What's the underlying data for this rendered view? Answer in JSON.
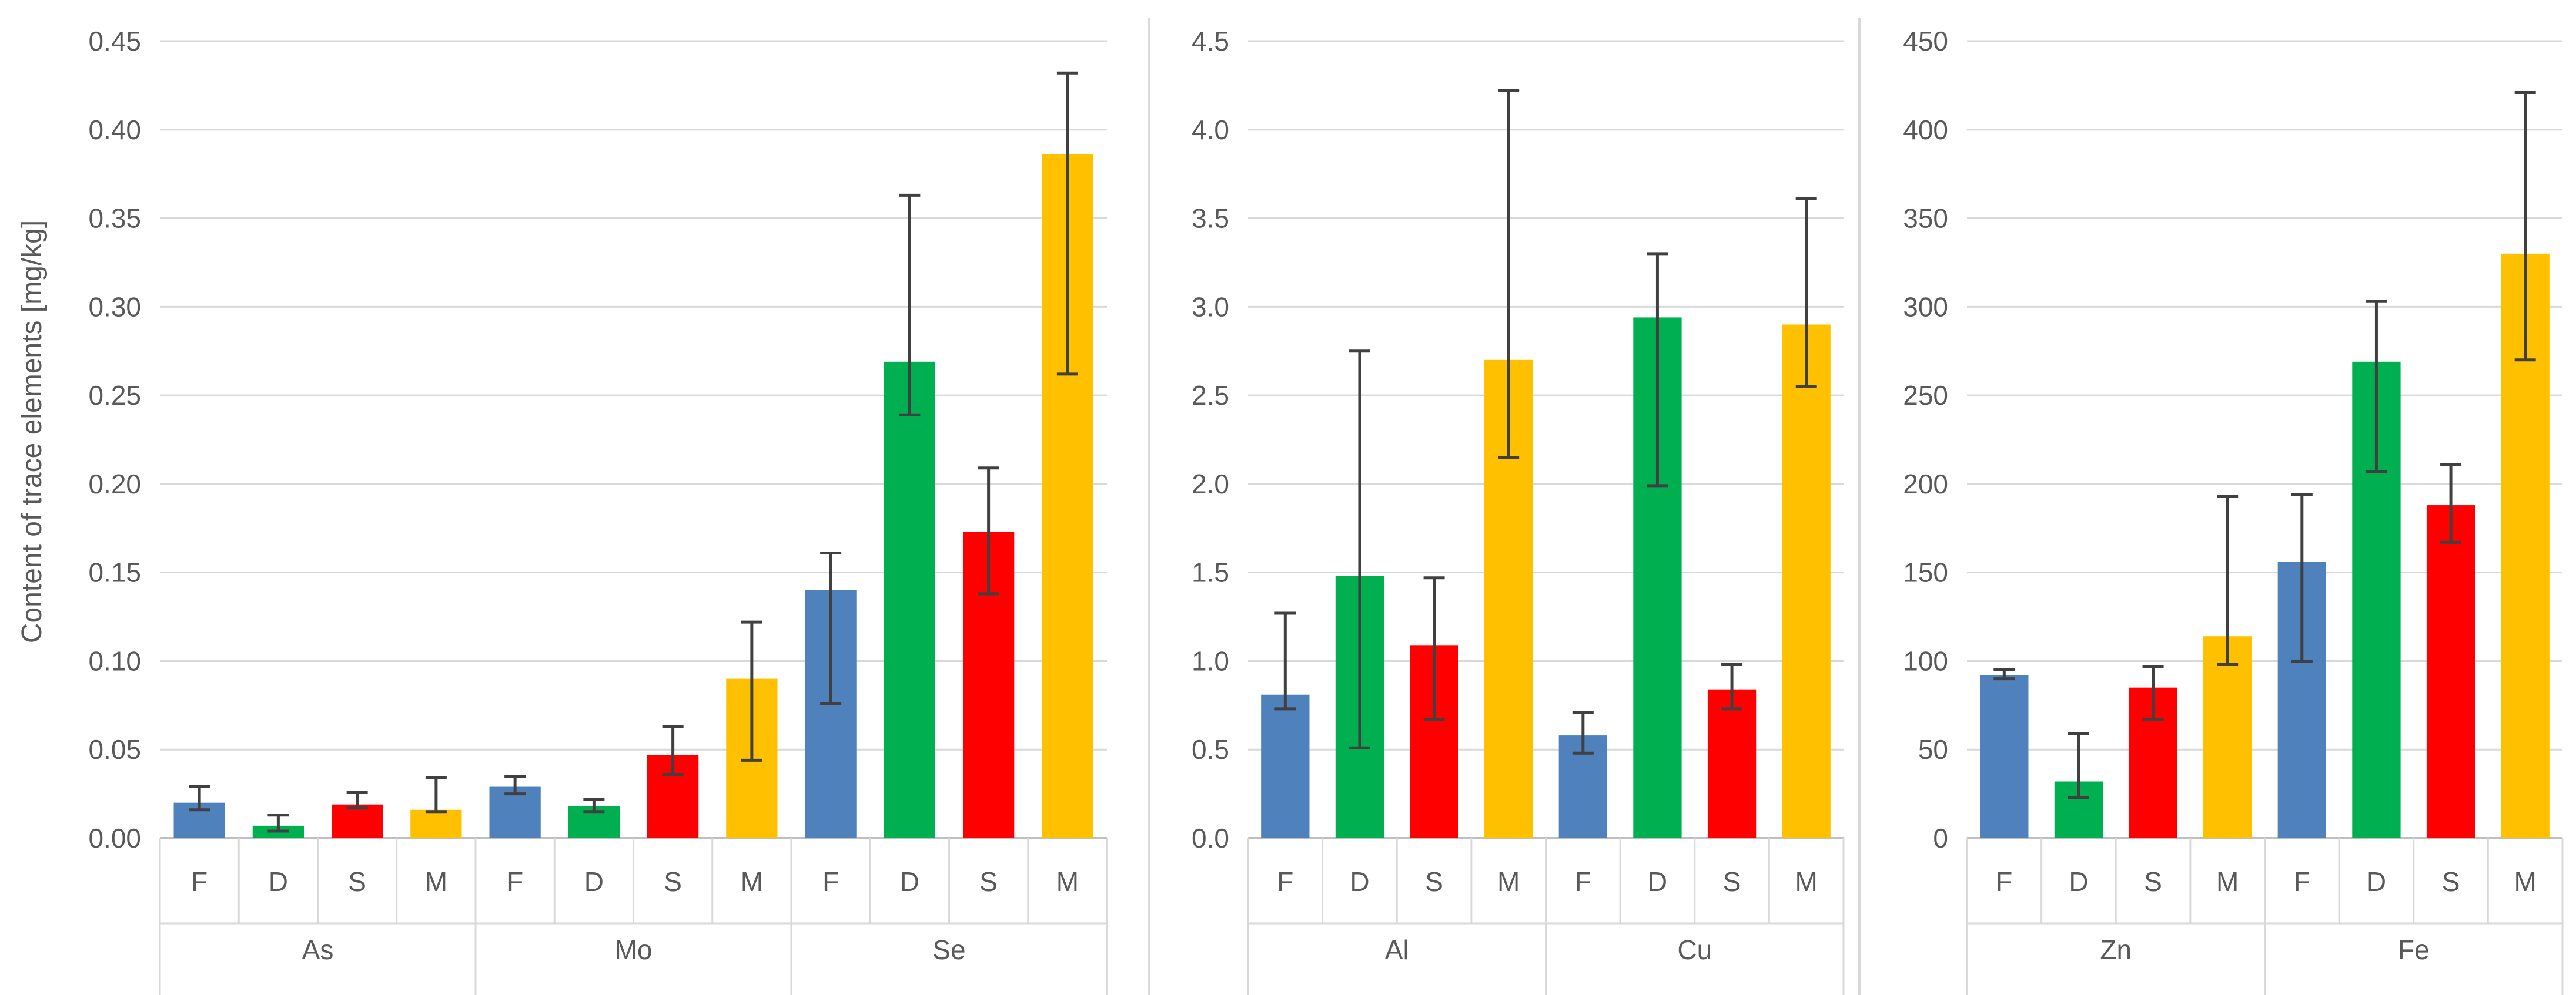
{
  "chart_data": {
    "type": "bar",
    "ylabel": "Content of trace elements [mg/kg]",
    "series_labels": [
      "F",
      "D",
      "S",
      "M"
    ],
    "colors": {
      "F": "#4f81bd",
      "D": "#00b050",
      "S": "#ff0000",
      "M": "#ffc000"
    },
    "gridline_color": "#d9d9d9",
    "errorbar_color": "#404040",
    "panels": [
      {
        "ylim": [
          0,
          0.45
        ],
        "ticks": [
          "0.00",
          "0.05",
          "0.10",
          "0.15",
          "0.20",
          "0.25",
          "0.30",
          "0.35",
          "0.40",
          "0.45"
        ],
        "groups": [
          {
            "name": "As",
            "bars": [
              {
                "label": "F",
                "value": 0.02,
                "err_low": 0.016,
                "err_high": 0.029
              },
              {
                "label": "D",
                "value": 0.007,
                "err_low": 0.004,
                "err_high": 0.013
              },
              {
                "label": "S",
                "value": 0.019,
                "err_low": 0.017,
                "err_high": 0.026
              },
              {
                "label": "M",
                "value": 0.016,
                "err_low": 0.015,
                "err_high": 0.034
              }
            ]
          },
          {
            "name": "Mo",
            "bars": [
              {
                "label": "F",
                "value": 0.029,
                "err_low": 0.025,
                "err_high": 0.035
              },
              {
                "label": "D",
                "value": 0.018,
                "err_low": 0.015,
                "err_high": 0.022
              },
              {
                "label": "S",
                "value": 0.047,
                "err_low": 0.036,
                "err_high": 0.063
              },
              {
                "label": "M",
                "value": 0.09,
                "err_low": 0.044,
                "err_high": 0.122
              }
            ]
          },
          {
            "name": "Se",
            "bars": [
              {
                "label": "F",
                "value": 0.14,
                "err_low": 0.076,
                "err_high": 0.161
              },
              {
                "label": "D",
                "value": 0.269,
                "err_low": 0.239,
                "err_high": 0.363
              },
              {
                "label": "S",
                "value": 0.173,
                "err_low": 0.138,
                "err_high": 0.209
              },
              {
                "label": "M",
                "value": 0.386,
                "err_low": 0.262,
                "err_high": 0.432
              }
            ]
          }
        ]
      },
      {
        "ylim": [
          0,
          4.5
        ],
        "ticks": [
          "0.0",
          "0.5",
          "1.0",
          "1.5",
          "2.0",
          "2.5",
          "3.0",
          "3.5",
          "4.0",
          "4.5"
        ],
        "groups": [
          {
            "name": "Al",
            "bars": [
              {
                "label": "F",
                "value": 0.81,
                "err_low": 0.73,
                "err_high": 1.27
              },
              {
                "label": "D",
                "value": 1.48,
                "err_low": 0.51,
                "err_high": 2.75
              },
              {
                "label": "S",
                "value": 1.09,
                "err_low": 0.67,
                "err_high": 1.47
              },
              {
                "label": "M",
                "value": 2.7,
                "err_low": 2.15,
                "err_high": 4.22
              }
            ]
          },
          {
            "name": "Cu",
            "bars": [
              {
                "label": "F",
                "value": 0.58,
                "err_low": 0.48,
                "err_high": 0.71
              },
              {
                "label": "D",
                "value": 2.94,
                "err_low": 1.99,
                "err_high": 3.3
              },
              {
                "label": "S",
                "value": 0.84,
                "err_low": 0.73,
                "err_high": 0.98
              },
              {
                "label": "M",
                "value": 2.9,
                "err_low": 2.55,
                "err_high": 3.61
              }
            ]
          }
        ]
      },
      {
        "ylim": [
          0,
          450
        ],
        "ticks": [
          "0",
          "50",
          "100",
          "150",
          "200",
          "250",
          "300",
          "350",
          "400",
          "450"
        ],
        "groups": [
          {
            "name": "Zn",
            "bars": [
              {
                "label": "F",
                "value": 92,
                "err_low": 90,
                "err_high": 95
              },
              {
                "label": "D",
                "value": 32,
                "err_low": 23,
                "err_high": 59
              },
              {
                "label": "S",
                "value": 85,
                "err_low": 67,
                "err_high": 97
              },
              {
                "label": "M",
                "value": 114,
                "err_low": 98,
                "err_high": 193
              }
            ]
          },
          {
            "name": "Fe",
            "bars": [
              {
                "label": "F",
                "value": 156,
                "err_low": 100,
                "err_high": 194
              },
              {
                "label": "D",
                "value": 269,
                "err_low": 207,
                "err_high": 303
              },
              {
                "label": "S",
                "value": 188,
                "err_low": 167,
                "err_high": 211
              },
              {
                "label": "M",
                "value": 330,
                "err_low": 270,
                "err_high": 421
              }
            ]
          }
        ]
      }
    ]
  }
}
